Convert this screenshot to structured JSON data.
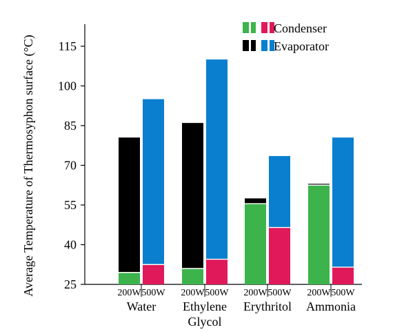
{
  "chart_data": {
    "type": "bar",
    "title": "",
    "ylabel": "Average Temperature of Thermosyphon surface (°C)",
    "xlabel": "",
    "ylim": [
      25,
      115
    ],
    "yticks": [
      25,
      40,
      55,
      70,
      85,
      100,
      115
    ],
    "grid": false,
    "legend_placement": "top-right",
    "legend": [
      {
        "label": "Condenser",
        "colors": [
          "#3cb44b",
          "#3cb44b",
          "#e0195a",
          "#e0195a"
        ]
      },
      {
        "label": "Evaporator",
        "colors": [
          "#000000",
          "#000000",
          "#0a7fcf",
          "#0a7fcf"
        ]
      }
    ],
    "groups": [
      {
        "label": [
          "Water"
        ],
        "bars": [
          {
            "sublabel": "200W",
            "condenser": 29.5,
            "evaporator": 80.5,
            "evaporator_color": "#000000",
            "condenser_color": "#3cb44b"
          },
          {
            "sublabel": "500W",
            "condenser": 32.5,
            "evaporator": 95.0,
            "evaporator_color": "#0a7fcf",
            "condenser_color": "#e0195a"
          }
        ]
      },
      {
        "label": [
          "Ethylene",
          "Glycol"
        ],
        "bars": [
          {
            "sublabel": "200W",
            "condenser": 31.0,
            "evaporator": 86.0,
            "evaporator_color": "#000000",
            "condenser_color": "#3cb44b"
          },
          {
            "sublabel": "500W",
            "condenser": 34.5,
            "evaporator": 110.0,
            "evaporator_color": "#0a7fcf",
            "condenser_color": "#e0195a"
          }
        ]
      },
      {
        "label": [
          "Erythritol"
        ],
        "bars": [
          {
            "sublabel": "200W",
            "condenser": 55.5,
            "evaporator": 57.5,
            "evaporator_color": "#000000",
            "condenser_color": "#3cb44b"
          },
          {
            "sublabel": "500W",
            "condenser": 46.5,
            "evaporator": 73.5,
            "evaporator_color": "#0a7fcf",
            "condenser_color": "#e0195a"
          }
        ]
      },
      {
        "label": [
          "Ammonia"
        ],
        "bars": [
          {
            "sublabel": "200W",
            "condenser": 62.5,
            "evaporator": 63.0,
            "evaporator_color": "#000000",
            "condenser_color": "#3cb44b"
          },
          {
            "sublabel": "500W",
            "condenser": 31.5,
            "evaporator": 80.5,
            "evaporator_color": "#0a7fcf",
            "condenser_color": "#e0195a"
          }
        ]
      }
    ]
  }
}
